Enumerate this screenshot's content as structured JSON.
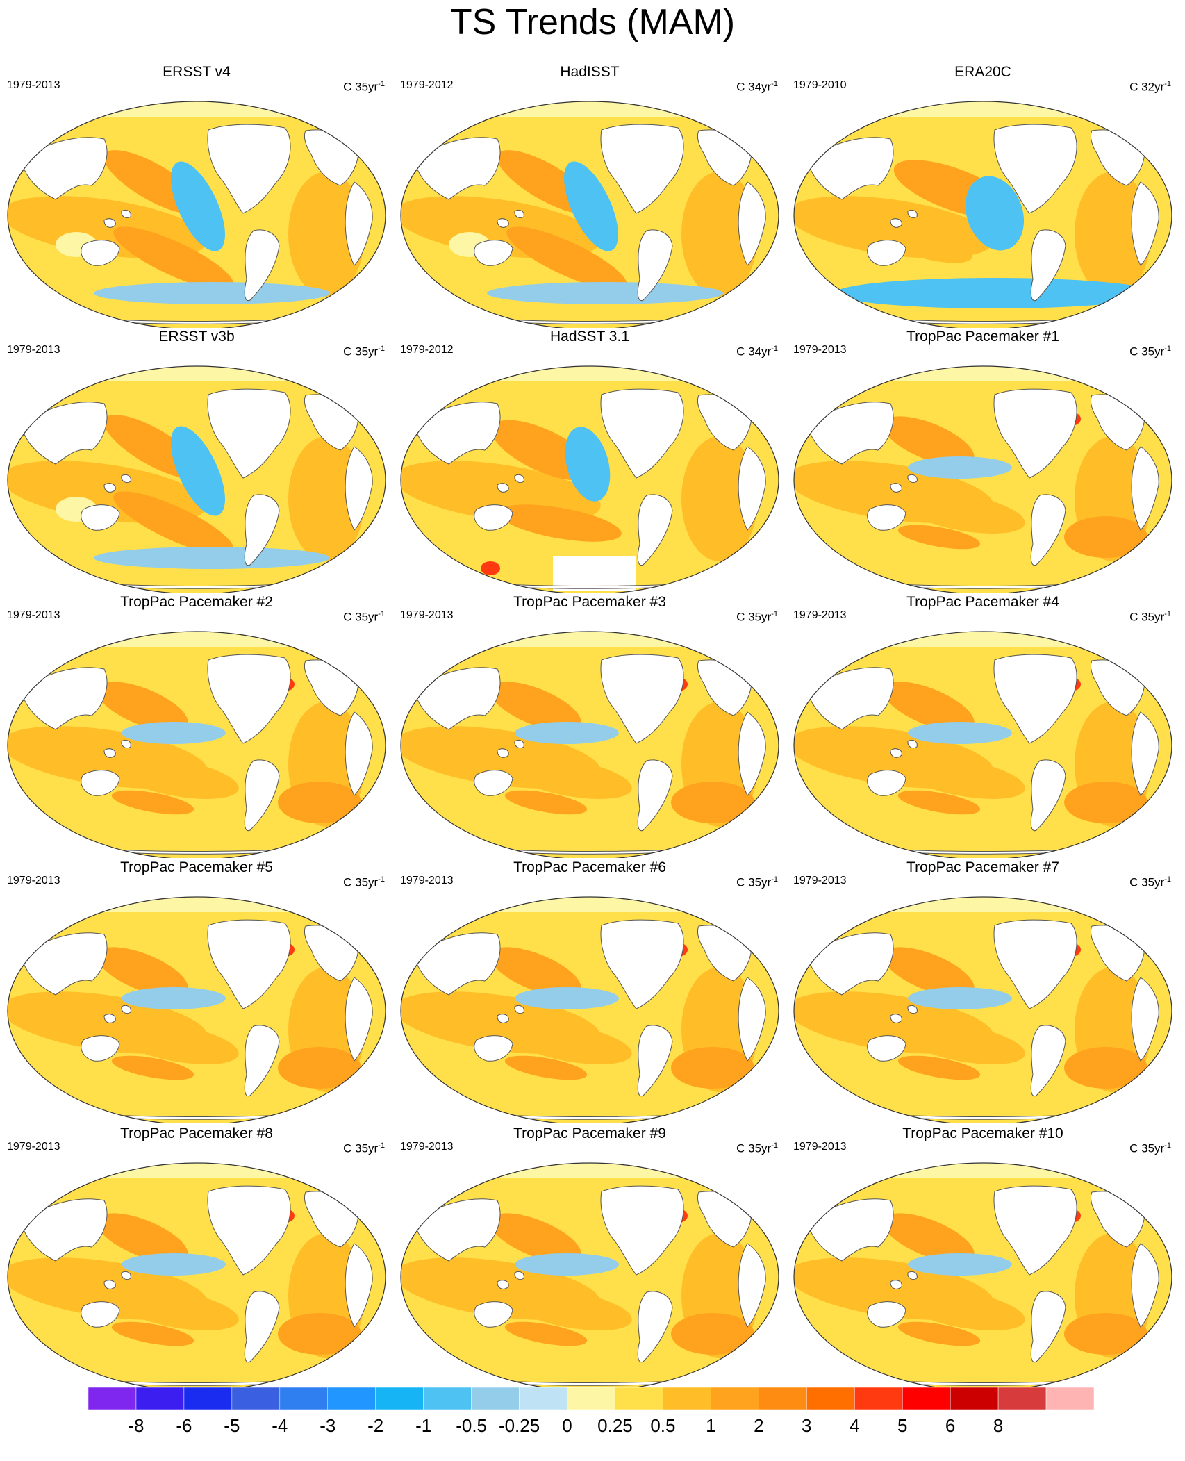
{
  "title": "TS Trends (MAM)",
  "chart_data": [
    {
      "type": "heatmap",
      "title": "ERSST v4",
      "period": "1979-2013",
      "units": "C 35yr",
      "units_exp": "-1",
      "pattern": "obs"
    },
    {
      "type": "heatmap",
      "title": "HadISST",
      "period": "1979-2012",
      "units": "C 34yr",
      "units_exp": "-1",
      "pattern": "hadisst"
    },
    {
      "type": "heatmap",
      "title": "ERA20C",
      "period": "1979-2010",
      "units": "C 32yr",
      "units_exp": "-1",
      "pattern": "era"
    },
    {
      "type": "heatmap",
      "title": "ERSST v3b",
      "period": "1979-2013",
      "units": "C 35yr",
      "units_exp": "-1",
      "pattern": "obs"
    },
    {
      "type": "heatmap",
      "title": "HadSST 3.1",
      "period": "1979-2012",
      "units": "C 34yr",
      "units_exp": "-1",
      "pattern": "hadsst"
    },
    {
      "type": "heatmap",
      "title": "TropPac Pacemaker #1",
      "period": "1979-2013",
      "units": "C 35yr",
      "units_exp": "-1",
      "pattern": "pace"
    },
    {
      "type": "heatmap",
      "title": "TropPac Pacemaker #2",
      "period": "1979-2013",
      "units": "C 35yr",
      "units_exp": "-1",
      "pattern": "pace"
    },
    {
      "type": "heatmap",
      "title": "TropPac Pacemaker #3",
      "period": "1979-2013",
      "units": "C 35yr",
      "units_exp": "-1",
      "pattern": "pace"
    },
    {
      "type": "heatmap",
      "title": "TropPac Pacemaker #4",
      "period": "1979-2013",
      "units": "C 35yr",
      "units_exp": "-1",
      "pattern": "pace"
    },
    {
      "type": "heatmap",
      "title": "TropPac Pacemaker #5",
      "period": "1979-2013",
      "units": "C 35yr",
      "units_exp": "-1",
      "pattern": "pace"
    },
    {
      "type": "heatmap",
      "title": "TropPac Pacemaker #6",
      "period": "1979-2013",
      "units": "C 35yr",
      "units_exp": "-1",
      "pattern": "pace"
    },
    {
      "type": "heatmap",
      "title": "TropPac Pacemaker #7",
      "period": "1979-2013",
      "units": "C 35yr",
      "units_exp": "-1",
      "pattern": "pace"
    },
    {
      "type": "heatmap",
      "title": "TropPac Pacemaker #8",
      "period": "1979-2013",
      "units": "C 35yr",
      "units_exp": "-1",
      "pattern": "pace"
    },
    {
      "type": "heatmap",
      "title": "TropPac Pacemaker #9",
      "period": "1979-2013",
      "units": "C 35yr",
      "units_exp": "-1",
      "pattern": "pace"
    },
    {
      "type": "heatmap",
      "title": "TropPac Pacemaker #10",
      "period": "1979-2013",
      "units": "C 35yr",
      "units_exp": "-1",
      "pattern": "pace"
    }
  ],
  "colorbar": {
    "colors": [
      "#7f26ef",
      "#3c1ef0",
      "#1a2cef",
      "#3a5fe0",
      "#2f7ff0",
      "#2196ff",
      "#17b4f5",
      "#4ec2f2",
      "#94cdea",
      "#bfe2f4",
      "#fdf6a4",
      "#ffe04a",
      "#ffbe28",
      "#ffa31e",
      "#ff8c12",
      "#ff6f00",
      "#ff3a10",
      "#ff0000",
      "#cc0000",
      "#d83b3b",
      "#ffb4b4"
    ],
    "labels": [
      "-8",
      "-6",
      "-5",
      "-4",
      "-3",
      "-2",
      "-1",
      "-0.5",
      "-0.25",
      "0",
      "0.25",
      "0.5",
      "1",
      "2",
      "3",
      "4",
      "5",
      "6",
      "8"
    ]
  }
}
